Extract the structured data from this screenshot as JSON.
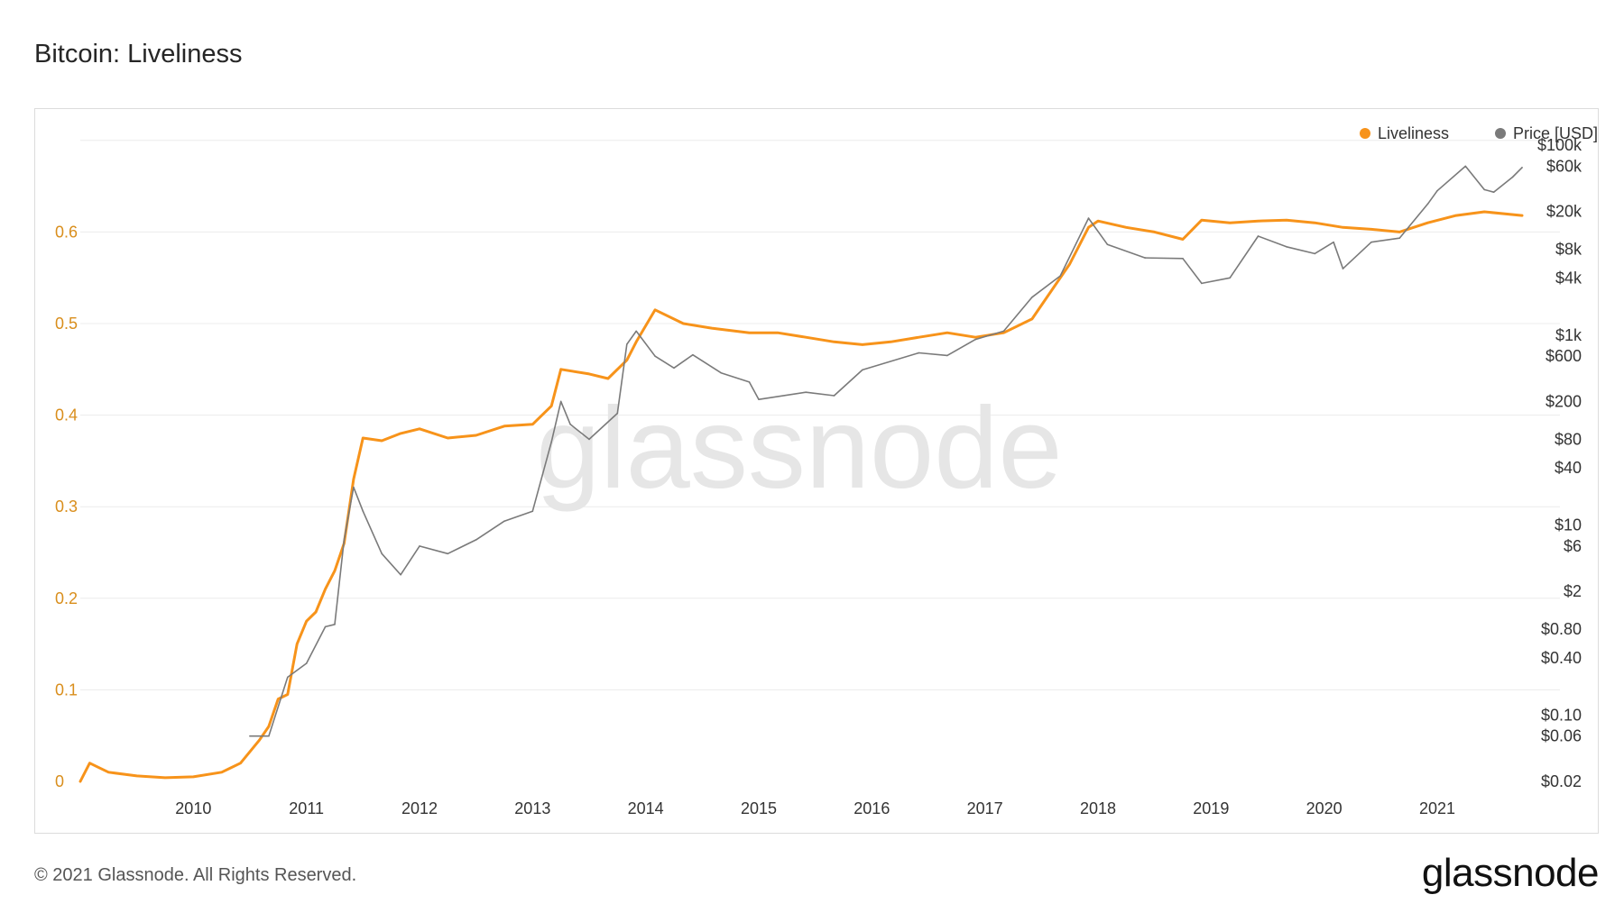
{
  "title": "Bitcoin: Liveliness",
  "footer": "© 2021 Glassnode. All Rights Reserved.",
  "brand": "glassnode",
  "watermark": "glassnode",
  "colors": {
    "liveliness": "#f7931a",
    "price": "#7a7a7a",
    "grid": "#ececec",
    "left_axis": "#d98e1c"
  },
  "chart_data": {
    "type": "line",
    "title": "Bitcoin: Liveliness",
    "grid": true,
    "legend_position": "top-right",
    "x_range": [
      "2009-01",
      "2021-10"
    ],
    "x_ticks": [
      "2010",
      "2011",
      "2012",
      "2013",
      "2014",
      "2015",
      "2016",
      "2017",
      "2018",
      "2019",
      "2020",
      "2021"
    ],
    "y_left": {
      "range": [
        0,
        0.7
      ],
      "ticks": [
        "0",
        "0.1",
        "0.2",
        "0.3",
        "0.4",
        "0.5",
        "0.6"
      ]
    },
    "y_right": {
      "scale": "log",
      "ticks": [
        "$0.02",
        "$0.06",
        "$0.10",
        "$0.40",
        "$0.80",
        "$2",
        "$6",
        "$10",
        "$40",
        "$80",
        "$200",
        "$600",
        "$1k",
        "$4k",
        "$8k",
        "$20k",
        "$60k",
        "$100k"
      ]
    },
    "series": [
      {
        "name": "Liveliness",
        "axis": "left",
        "points": [
          [
            "2009-01",
            0.0
          ],
          [
            "2009-02",
            0.02
          ],
          [
            "2009-03",
            0.015
          ],
          [
            "2009-04",
            0.01
          ],
          [
            "2009-07",
            0.006
          ],
          [
            "2009-10",
            0.004
          ],
          [
            "2010-01",
            0.005
          ],
          [
            "2010-04",
            0.01
          ],
          [
            "2010-06",
            0.02
          ],
          [
            "2010-08",
            0.045
          ],
          [
            "2010-09",
            0.06
          ],
          [
            "2010-10",
            0.09
          ],
          [
            "2010-11",
            0.095
          ],
          [
            "2010-12",
            0.15
          ],
          [
            "2011-01",
            0.175
          ],
          [
            "2011-02",
            0.185
          ],
          [
            "2011-03",
            0.21
          ],
          [
            "2011-04",
            0.23
          ],
          [
            "2011-05",
            0.26
          ],
          [
            "2011-06",
            0.33
          ],
          [
            "2011-07",
            0.375
          ],
          [
            "2011-09",
            0.372
          ],
          [
            "2011-11",
            0.38
          ],
          [
            "2012-01",
            0.385
          ],
          [
            "2012-04",
            0.375
          ],
          [
            "2012-07",
            0.378
          ],
          [
            "2012-10",
            0.388
          ],
          [
            "2013-01",
            0.39
          ],
          [
            "2013-03",
            0.41
          ],
          [
            "2013-04",
            0.45
          ],
          [
            "2013-07",
            0.445
          ],
          [
            "2013-09",
            0.44
          ],
          [
            "2013-11",
            0.46
          ],
          [
            "2013-12",
            0.48
          ],
          [
            "2014-02",
            0.515
          ],
          [
            "2014-05",
            0.5
          ],
          [
            "2014-08",
            0.495
          ],
          [
            "2014-12",
            0.49
          ],
          [
            "2015-03",
            0.49
          ],
          [
            "2015-06",
            0.485
          ],
          [
            "2015-09",
            0.48
          ],
          [
            "2015-12",
            0.477
          ],
          [
            "2016-03",
            0.48
          ],
          [
            "2016-06",
            0.485
          ],
          [
            "2016-09",
            0.49
          ],
          [
            "2016-12",
            0.485
          ],
          [
            "2017-03",
            0.49
          ],
          [
            "2017-06",
            0.505
          ],
          [
            "2017-08",
            0.535
          ],
          [
            "2017-10",
            0.565
          ],
          [
            "2017-12",
            0.605
          ],
          [
            "2018-01",
            0.612
          ],
          [
            "2018-04",
            0.605
          ],
          [
            "2018-07",
            0.6
          ],
          [
            "2018-10",
            0.592
          ],
          [
            "2018-12",
            0.613
          ],
          [
            "2019-03",
            0.61
          ],
          [
            "2019-06",
            0.612
          ],
          [
            "2019-09",
            0.613
          ],
          [
            "2019-12",
            0.61
          ],
          [
            "2020-03",
            0.605
          ],
          [
            "2020-06",
            0.603
          ],
          [
            "2020-09",
            0.6
          ],
          [
            "2020-12",
            0.61
          ],
          [
            "2021-03",
            0.618
          ],
          [
            "2021-06",
            0.622
          ],
          [
            "2021-10",
            0.618
          ]
        ]
      },
      {
        "name": "Price [USD]",
        "axis": "right",
        "points": [
          [
            "2010-07",
            0.06
          ],
          [
            "2010-09",
            0.06
          ],
          [
            "2010-11",
            0.25
          ],
          [
            "2011-01",
            0.35
          ],
          [
            "2011-03",
            0.85
          ],
          [
            "2011-04",
            0.9
          ],
          [
            "2011-05",
            7
          ],
          [
            "2011-06",
            25
          ],
          [
            "2011-07",
            14
          ],
          [
            "2011-09",
            5
          ],
          [
            "2011-11",
            3
          ],
          [
            "2012-01",
            6
          ],
          [
            "2012-04",
            5
          ],
          [
            "2012-07",
            7
          ],
          [
            "2012-10",
            11
          ],
          [
            "2013-01",
            14
          ],
          [
            "2013-03",
            75
          ],
          [
            "2013-04",
            200
          ],
          [
            "2013-05",
            115
          ],
          [
            "2013-07",
            80
          ],
          [
            "2013-10",
            150
          ],
          [
            "2013-11",
            800
          ],
          [
            "2013-12",
            1100
          ],
          [
            "2014-02",
            600
          ],
          [
            "2014-04",
            450
          ],
          [
            "2014-06",
            620
          ],
          [
            "2014-09",
            400
          ],
          [
            "2014-12",
            320
          ],
          [
            "2015-01",
            210
          ],
          [
            "2015-06",
            250
          ],
          [
            "2015-09",
            230
          ],
          [
            "2015-12",
            430
          ],
          [
            "2016-06",
            650
          ],
          [
            "2016-09",
            610
          ],
          [
            "2016-12",
            900
          ],
          [
            "2017-03",
            1100
          ],
          [
            "2017-06",
            2500
          ],
          [
            "2017-09",
            4200
          ],
          [
            "2017-12",
            17000
          ],
          [
            "2018-02",
            9000
          ],
          [
            "2018-06",
            6500
          ],
          [
            "2018-10",
            6400
          ],
          [
            "2018-12",
            3500
          ],
          [
            "2019-03",
            4000
          ],
          [
            "2019-06",
            11000
          ],
          [
            "2019-09",
            8500
          ],
          [
            "2019-12",
            7200
          ],
          [
            "2020-02",
            9500
          ],
          [
            "2020-03",
            5000
          ],
          [
            "2020-06",
            9500
          ],
          [
            "2020-09",
            10500
          ],
          [
            "2020-12",
            24000
          ],
          [
            "2021-01",
            33000
          ],
          [
            "2021-04",
            60000
          ],
          [
            "2021-06",
            34000
          ],
          [
            "2021-07",
            32000
          ],
          [
            "2021-09",
            46000
          ],
          [
            "2021-10",
            58000
          ]
        ]
      }
    ]
  }
}
